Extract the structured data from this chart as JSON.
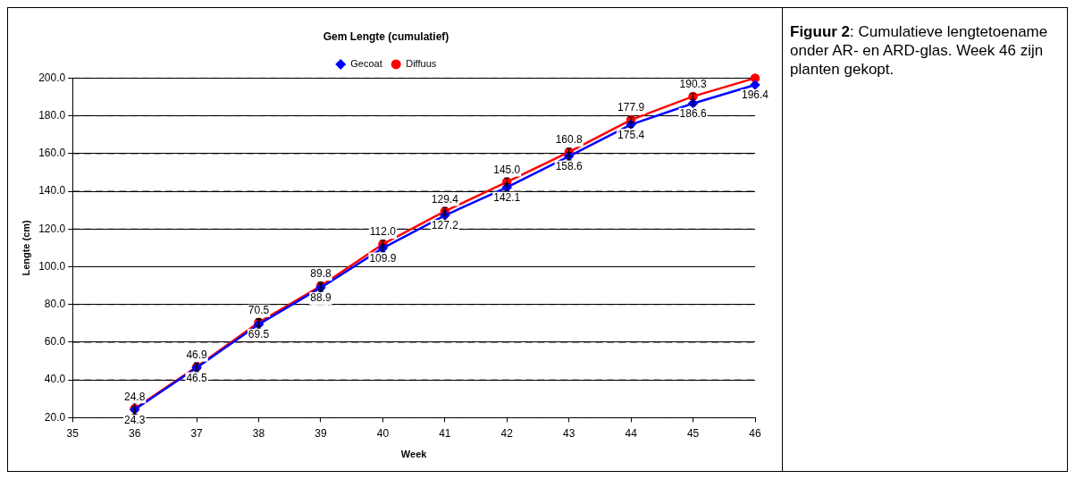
{
  "chart_data": {
    "type": "line",
    "title": "Gem Lengte (cumulatief)",
    "xlabel": "Week",
    "ylabel": "Lengte (cm)",
    "x": [
      36,
      37,
      38,
      39,
      40,
      41,
      42,
      43,
      44,
      45,
      46
    ],
    "series": [
      {
        "name": "Gecoat",
        "color": "#0000ff",
        "marker": "diamond",
        "values": [
          24.3,
          46.5,
          69.5,
          88.9,
          109.9,
          127.2,
          142.1,
          158.6,
          175.4,
          186.6,
          196.4
        ],
        "errors": [
          4,
          2.5,
          2.5,
          2,
          2,
          2.5,
          2,
          2,
          1.5,
          1,
          null
        ],
        "value_labels": [
          "24.3",
          "46.5",
          "69.5",
          "88.9",
          "109.9",
          "127.2",
          "142.1",
          "158.6",
          "175.4",
          "186.6",
          "196.4"
        ]
      },
      {
        "name": "Diffuus",
        "color": "#ff0000",
        "marker": "circle",
        "values": [
          24.8,
          46.9,
          70.5,
          89.8,
          112.0,
          129.4,
          145.0,
          160.8,
          177.9,
          190.3,
          200.0
        ],
        "errors": [
          3,
          2,
          2,
          2,
          2,
          2,
          2,
          2,
          1.5,
          1.5,
          null
        ],
        "value_labels": [
          "24.8",
          "46.9",
          "70.5",
          "89.8",
          "112.0",
          "129.4",
          "145.0",
          "160.8",
          "177.9",
          "190.3",
          null
        ]
      }
    ],
    "xlim": [
      35,
      46
    ],
    "xticks": [
      35,
      36,
      37,
      38,
      39,
      40,
      41,
      42,
      43,
      44,
      45,
      46
    ],
    "ylim": [
      20,
      200
    ],
    "yticks": [
      {
        "value": 20,
        "label": "20.0"
      },
      {
        "value": 40,
        "label": "40.0"
      },
      {
        "value": 60,
        "label": "60.0"
      },
      {
        "value": 80,
        "label": "80.0"
      },
      {
        "value": 100,
        "label": "100.0"
      },
      {
        "value": 120,
        "label": "120.0"
      },
      {
        "value": 140,
        "label": "140.0"
      },
      {
        "value": 160,
        "label": "160.0"
      },
      {
        "value": 180,
        "label": "180.0"
      },
      {
        "value": 200,
        "label": "200.0"
      }
    ],
    "grid": "y",
    "legend": "top",
    "annotations": [
      "Figuur 2: Cumulatieve lengtetoename onder AR- en ARD-glas. Week 46 zijn planten gekopt."
    ]
  }
}
